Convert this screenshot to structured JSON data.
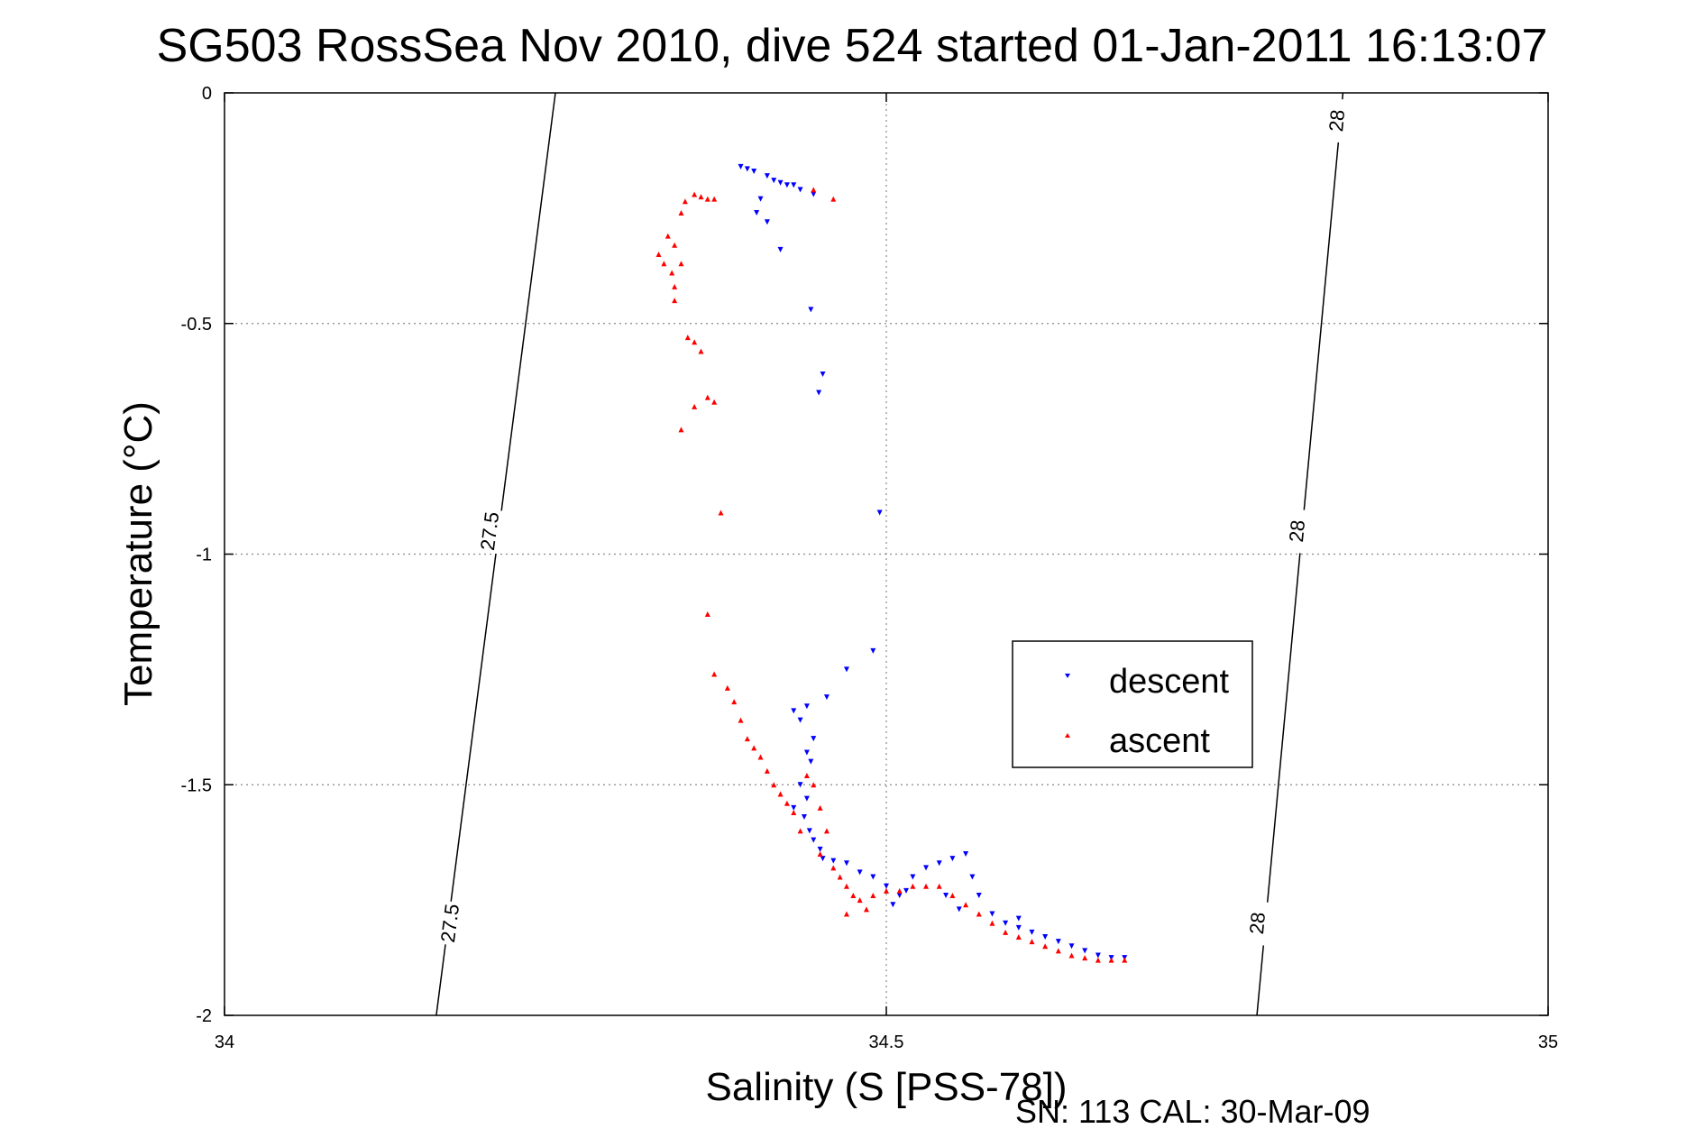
{
  "chart_data": {
    "type": "scatter",
    "title": "SG503 RossSea Nov 2010, dive 524 started 01-Jan-2011 16:13:07",
    "xlabel": "Salinity (S [PSS-78])",
    "ylabel": "Temperature (°C)",
    "xlim": [
      34,
      35
    ],
    "ylim": [
      -2,
      0
    ],
    "xticks": [
      34,
      34.5,
      35
    ],
    "xtick_labels": [
      "34",
      "34.5",
      "35"
    ],
    "yticks": [
      0,
      -0.5,
      -1,
      -1.5,
      -2
    ],
    "ytick_labels": [
      "0",
      "-0.5",
      "-1",
      "-1.5",
      "-2"
    ],
    "grid": true,
    "legend_position": "right-middle",
    "footer": "SN: 113  CAL: 30-Mar-09",
    "density_contours": [
      {
        "label": "27.5",
        "points": [
          [
            34.25,
            0
          ],
          [
            34.16,
            -2
          ]
        ],
        "label_positions": [
          [
            34.2,
            -0.95
          ],
          [
            34.17,
            -1.8
          ]
        ]
      },
      {
        "label": "28",
        "points": [
          [
            34.845,
            0
          ],
          [
            34.78,
            -2
          ]
        ],
        "label_positions": [
          [
            34.84,
            -0.06
          ],
          [
            34.81,
            -0.95
          ],
          [
            34.78,
            -1.8
          ]
        ]
      }
    ],
    "series": [
      {
        "name": "descent",
        "color": "#0000ff",
        "marker": "triangle-down",
        "points": [
          [
            34.39,
            -0.16
          ],
          [
            34.395,
            -0.165
          ],
          [
            34.4,
            -0.17
          ],
          [
            34.41,
            -0.18
          ],
          [
            34.415,
            -0.19
          ],
          [
            34.42,
            -0.195
          ],
          [
            34.425,
            -0.2
          ],
          [
            34.43,
            -0.2
          ],
          [
            34.435,
            -0.21
          ],
          [
            34.445,
            -0.22
          ],
          [
            34.405,
            -0.23
          ],
          [
            34.402,
            -0.26
          ],
          [
            34.41,
            -0.28
          ],
          [
            34.42,
            -0.34
          ],
          [
            34.443,
            -0.47
          ],
          [
            34.452,
            -0.61
          ],
          [
            34.449,
            -0.65
          ],
          [
            34.495,
            -0.91
          ],
          [
            34.49,
            -1.21
          ],
          [
            34.47,
            -1.25
          ],
          [
            34.455,
            -1.31
          ],
          [
            34.44,
            -1.33
          ],
          [
            34.43,
            -1.34
          ],
          [
            34.435,
            -1.36
          ],
          [
            34.445,
            -1.4
          ],
          [
            34.44,
            -1.43
          ],
          [
            34.443,
            -1.45
          ],
          [
            34.435,
            -1.5
          ],
          [
            34.44,
            -1.53
          ],
          [
            34.43,
            -1.55
          ],
          [
            34.438,
            -1.57
          ],
          [
            34.442,
            -1.6
          ],
          [
            34.445,
            -1.62
          ],
          [
            34.45,
            -1.64
          ],
          [
            34.452,
            -1.66
          ],
          [
            34.46,
            -1.665
          ],
          [
            34.47,
            -1.67
          ],
          [
            34.48,
            -1.69
          ],
          [
            34.49,
            -1.7
          ],
          [
            34.5,
            -1.72
          ],
          [
            34.51,
            -1.74
          ],
          [
            34.505,
            -1.76
          ],
          [
            34.515,
            -1.73
          ],
          [
            34.52,
            -1.7
          ],
          [
            34.53,
            -1.68
          ],
          [
            34.54,
            -1.67
          ],
          [
            34.55,
            -1.66
          ],
          [
            34.56,
            -1.65
          ],
          [
            34.565,
            -1.7
          ],
          [
            34.57,
            -1.74
          ],
          [
            34.58,
            -1.78
          ],
          [
            34.59,
            -1.8
          ],
          [
            34.6,
            -1.81
          ],
          [
            34.61,
            -1.82
          ],
          [
            34.62,
            -1.83
          ],
          [
            34.63,
            -1.84
          ],
          [
            34.64,
            -1.85
          ],
          [
            34.65,
            -1.86
          ],
          [
            34.66,
            -1.87
          ],
          [
            34.67,
            -1.875
          ],
          [
            34.68,
            -1.875
          ],
          [
            34.545,
            -1.74
          ],
          [
            34.555,
            -1.77
          ],
          [
            34.6,
            -1.79
          ]
        ]
      },
      {
        "name": "ascent",
        "color": "#ff0000",
        "marker": "triangle-up",
        "points": [
          [
            34.355,
            -0.22
          ],
          [
            34.36,
            -0.225
          ],
          [
            34.365,
            -0.23
          ],
          [
            34.37,
            -0.23
          ],
          [
            34.348,
            -0.235
          ],
          [
            34.445,
            -0.21
          ],
          [
            34.46,
            -0.23
          ],
          [
            34.345,
            -0.26
          ],
          [
            34.335,
            -0.31
          ],
          [
            34.34,
            -0.33
          ],
          [
            34.328,
            -0.35
          ],
          [
            34.332,
            -0.37
          ],
          [
            34.345,
            -0.37
          ],
          [
            34.338,
            -0.39
          ],
          [
            34.34,
            -0.42
          ],
          [
            34.34,
            -0.45
          ],
          [
            34.35,
            -0.53
          ],
          [
            34.355,
            -0.54
          ],
          [
            34.36,
            -0.56
          ],
          [
            34.365,
            -0.66
          ],
          [
            34.37,
            -0.67
          ],
          [
            34.355,
            -0.68
          ],
          [
            34.345,
            -0.73
          ],
          [
            34.375,
            -0.91
          ],
          [
            34.365,
            -1.13
          ],
          [
            34.37,
            -1.26
          ],
          [
            34.38,
            -1.29
          ],
          [
            34.385,
            -1.32
          ],
          [
            34.39,
            -1.36
          ],
          [
            34.395,
            -1.4
          ],
          [
            34.4,
            -1.42
          ],
          [
            34.405,
            -1.44
          ],
          [
            34.41,
            -1.47
          ],
          [
            34.415,
            -1.5
          ],
          [
            34.42,
            -1.52
          ],
          [
            34.425,
            -1.54
          ],
          [
            34.43,
            -1.56
          ],
          [
            34.435,
            -1.6
          ],
          [
            34.44,
            -1.48
          ],
          [
            34.445,
            -1.5
          ],
          [
            34.45,
            -1.55
          ],
          [
            34.455,
            -1.6
          ],
          [
            34.45,
            -1.65
          ],
          [
            34.46,
            -1.68
          ],
          [
            34.465,
            -1.7
          ],
          [
            34.47,
            -1.72
          ],
          [
            34.475,
            -1.74
          ],
          [
            34.48,
            -1.75
          ],
          [
            34.485,
            -1.77
          ],
          [
            34.47,
            -1.78
          ],
          [
            34.49,
            -1.74
          ],
          [
            34.5,
            -1.73
          ],
          [
            34.51,
            -1.73
          ],
          [
            34.52,
            -1.72
          ],
          [
            34.53,
            -1.72
          ],
          [
            34.54,
            -1.72
          ],
          [
            34.55,
            -1.74
          ],
          [
            34.56,
            -1.76
          ],
          [
            34.57,
            -1.78
          ],
          [
            34.58,
            -1.8
          ],
          [
            34.59,
            -1.82
          ],
          [
            34.6,
            -1.83
          ],
          [
            34.61,
            -1.84
          ],
          [
            34.62,
            -1.85
          ],
          [
            34.63,
            -1.86
          ],
          [
            34.64,
            -1.87
          ],
          [
            34.65,
            -1.875
          ],
          [
            34.66,
            -1.88
          ],
          [
            34.67,
            -1.88
          ],
          [
            34.68,
            -1.88
          ]
        ]
      }
    ]
  }
}
